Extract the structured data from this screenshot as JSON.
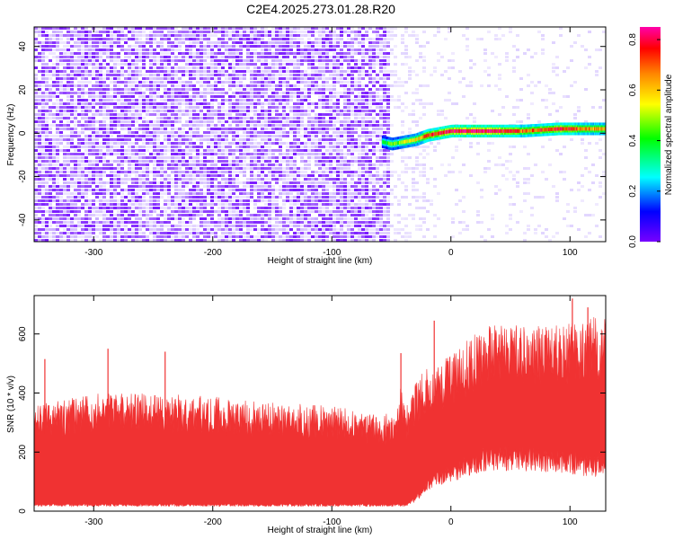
{
  "page_title": "C2E4.2025.273.01.28.R20",
  "chart_data": [
    {
      "type": "heatmap",
      "xlabel": "Height of straight line (km)",
      "ylabel": "Frequency (Hz)",
      "xlim": [
        -350,
        130
      ],
      "ylim": [
        -50,
        49
      ],
      "x_ticks": [
        -300,
        -200,
        -100,
        0,
        100
      ],
      "y_ticks": [
        40,
        20,
        0,
        -20,
        -40
      ],
      "colorbar": {
        "label": "Normalized spectral amplitude",
        "range": [
          0.0,
          0.85
        ],
        "ticks": [
          0.0,
          0.2,
          0.4,
          0.6,
          0.8
        ],
        "colormap": [
          "#7700ff",
          "#0000ff",
          "#00ffff",
          "#00ff00",
          "#ffff00",
          "#ff8800",
          "#ff0000",
          "#ff00aa"
        ]
      },
      "regions": [
        {
          "x_range": [
            -350,
            -52
          ],
          "description_amplitude": 0.1
        },
        {
          "x_range": [
            -52,
            130
          ],
          "description_amplitude": 0.02
        }
      ],
      "ridge": {
        "x": [
          -58,
          -50,
          -40,
          -30,
          -20,
          -10,
          0,
          10,
          30,
          60,
          90,
          130
        ],
        "frequency": [
          -4,
          -5,
          -4,
          -3,
          -1,
          0,
          1,
          1,
          1,
          1,
          2,
          2
        ],
        "amplitude": [
          0.35,
          0.45,
          0.5,
          0.55,
          0.7,
          0.8,
          0.75,
          0.85,
          0.85,
          0.7,
          0.75,
          0.6
        ]
      }
    },
    {
      "type": "area",
      "xlabel": "Height of straight line (km)",
      "ylabel": "SNR (10 * v/v)",
      "xlim": [
        -350,
        130
      ],
      "ylim": [
        0,
        730
      ],
      "x_ticks": [
        -300,
        -200,
        -100,
        0,
        100
      ],
      "y_ticks": [
        0,
        200,
        400,
        600
      ],
      "color": "#f03232",
      "x": [
        -350,
        -300,
        -250,
        -200,
        -150,
        -100,
        -60,
        -45,
        -42,
        -38,
        -30,
        -20,
        -10,
        0,
        10,
        30,
        60,
        90,
        110,
        130
      ],
      "lower": [
        20,
        20,
        20,
        20,
        20,
        20,
        20,
        20,
        20,
        20,
        40,
        80,
        110,
        120,
        140,
        170,
        170,
        160,
        150,
        140
      ],
      "upper": [
        340,
        380,
        380,
        370,
        350,
        340,
        310,
        330,
        420,
        330,
        420,
        470,
        490,
        500,
        540,
        600,
        600,
        600,
        620,
        640
      ],
      "spikes": [
        {
          "x": -341,
          "y": 515
        },
        {
          "x": -288,
          "y": 550
        },
        {
          "x": -240,
          "y": 540
        },
        {
          "x": -42,
          "y": 535
        },
        {
          "x": -14,
          "y": 645
        },
        {
          "x": 102,
          "y": 720
        },
        {
          "x": 115,
          "y": 690
        }
      ]
    }
  ]
}
